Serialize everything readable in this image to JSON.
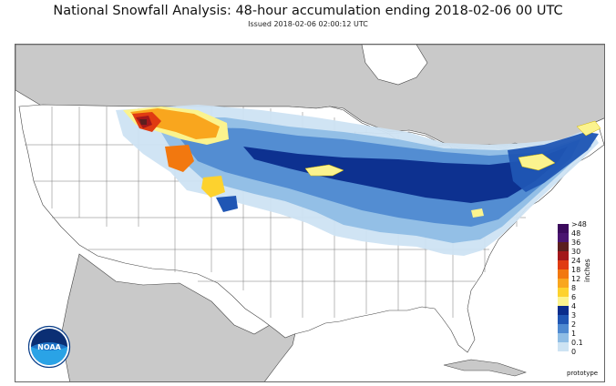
{
  "title": "National Snowfall Analysis: 48-hour accumulation ending 2018-02-06 00 UTC",
  "subtitle": "Issued 2018-02-06 02:00:12 UTC",
  "legend": {
    "units": "inches",
    "items": [
      {
        "label": ">48",
        "color": "#3b0a5c"
      },
      {
        "label": "48",
        "color": "#4a1470"
      },
      {
        "label": "36",
        "color": "#5c1f1f"
      },
      {
        "label": "30",
        "color": "#a3171b"
      },
      {
        "label": "24",
        "color": "#e03b12"
      },
      {
        "label": "18",
        "color": "#f2780f"
      },
      {
        "label": "12",
        "color": "#f9a61e"
      },
      {
        "label": "8",
        "color": "#fdd22e"
      },
      {
        "label": "6",
        "color": "#fbf38e"
      },
      {
        "label": "4",
        "color": "#0a2c8c"
      },
      {
        "label": "3",
        "color": "#2056b4"
      },
      {
        "label": "2",
        "color": "#4f8ad1"
      },
      {
        "label": "1",
        "color": "#8fbde5"
      },
      {
        "label": "0.1",
        "color": "#cde3f3"
      },
      {
        "label": "0",
        "color": "#ffffff"
      }
    ]
  },
  "footer": {
    "prototype": "prototype"
  },
  "logo": {
    "text": "NOAA"
  }
}
